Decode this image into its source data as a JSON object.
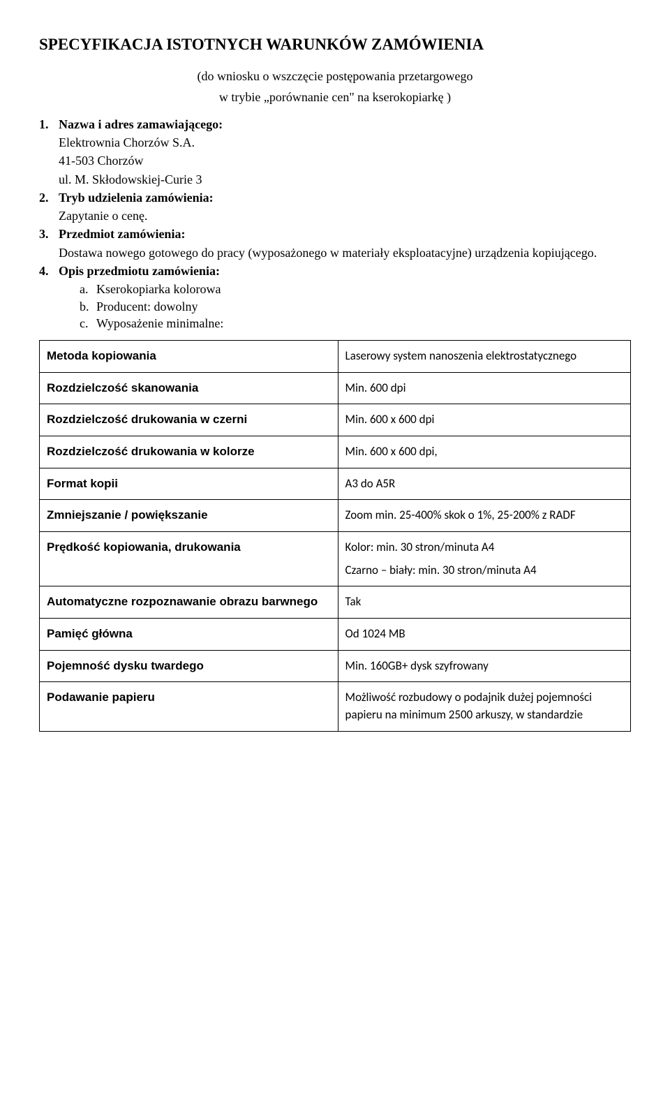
{
  "title": "SPECYFIKACJA ISTOTNYCH WARUNKÓW ZAMÓWIENIA",
  "sub1": "(do wniosku o wszczęcie postępowania przetargowego",
  "sub2": "w trybie „porównanie cen\" na kserokopiarkę )",
  "items": {
    "i1": {
      "num": "1.",
      "heading": "Nazwa i adres zamawiającego:",
      "l1": "Elektrownia Chorzów S.A.",
      "l2": "41-503 Chorzów",
      "l3": "ul. M. Skłodowskiej-Curie 3"
    },
    "i2": {
      "num": "2.",
      "heading": "Tryb udzielenia zamówienia:",
      "l1": "Zapytanie o cenę."
    },
    "i3": {
      "num": "3.",
      "heading": "Przedmiot zamówienia:",
      "l1": "Dostawa nowego gotowego do pracy (wyposażonego w materiały eksploatacyjne) urządzenia kopiującego."
    },
    "i4": {
      "num": "4.",
      "heading": "Opis przedmiotu zamówienia:",
      "a": {
        "letter": "a.",
        "text": "Kserokopiarka kolorowa"
      },
      "b": {
        "letter": "b.",
        "text": "Producent: dowolny"
      },
      "c": {
        "letter": "c.",
        "text": "Wyposażenie minimalne:"
      }
    }
  },
  "table": {
    "rows": [
      {
        "label": "Metoda kopiowania",
        "value": "Laserowy system nanoszenia elektrostatycznego"
      },
      {
        "label": "Rozdzielczość skanowania",
        "value": "Min. 600 dpi"
      },
      {
        "label": "Rozdzielczość drukowania w czerni",
        "value": "Min. 600 x 600 dpi"
      },
      {
        "label": "Rozdzielczość drukowania w kolorze",
        "value": "Min. 600 x 600 dpi,"
      },
      {
        "label": "Format kopii",
        "value": "A3 do A5R"
      },
      {
        "label": "Zmniejszanie / powiększanie",
        "value": "Zoom min. 25-400% skok o 1%, 25-200% z RADF"
      },
      {
        "label": "Prędkość kopiowania, drukowania",
        "value": "Kolor: min. 30 stron/minuta A4",
        "value2": "Czarno – biały: min. 30 stron/minuta A4"
      },
      {
        "label": "Automatyczne rozpoznawanie obrazu barwnego",
        "value": "Tak"
      },
      {
        "label": "Pamięć główna",
        "value": "Od 1024 MB"
      },
      {
        "label": "Pojemność dysku twardego",
        "value": "Min. 160GB+ dysk szyfrowany"
      },
      {
        "label": "Podawanie papieru",
        "value": "Możliwość rozbudowy o podajnik dużej pojemności papieru na minimum 2500 arkuszy, w standardzie"
      }
    ]
  }
}
